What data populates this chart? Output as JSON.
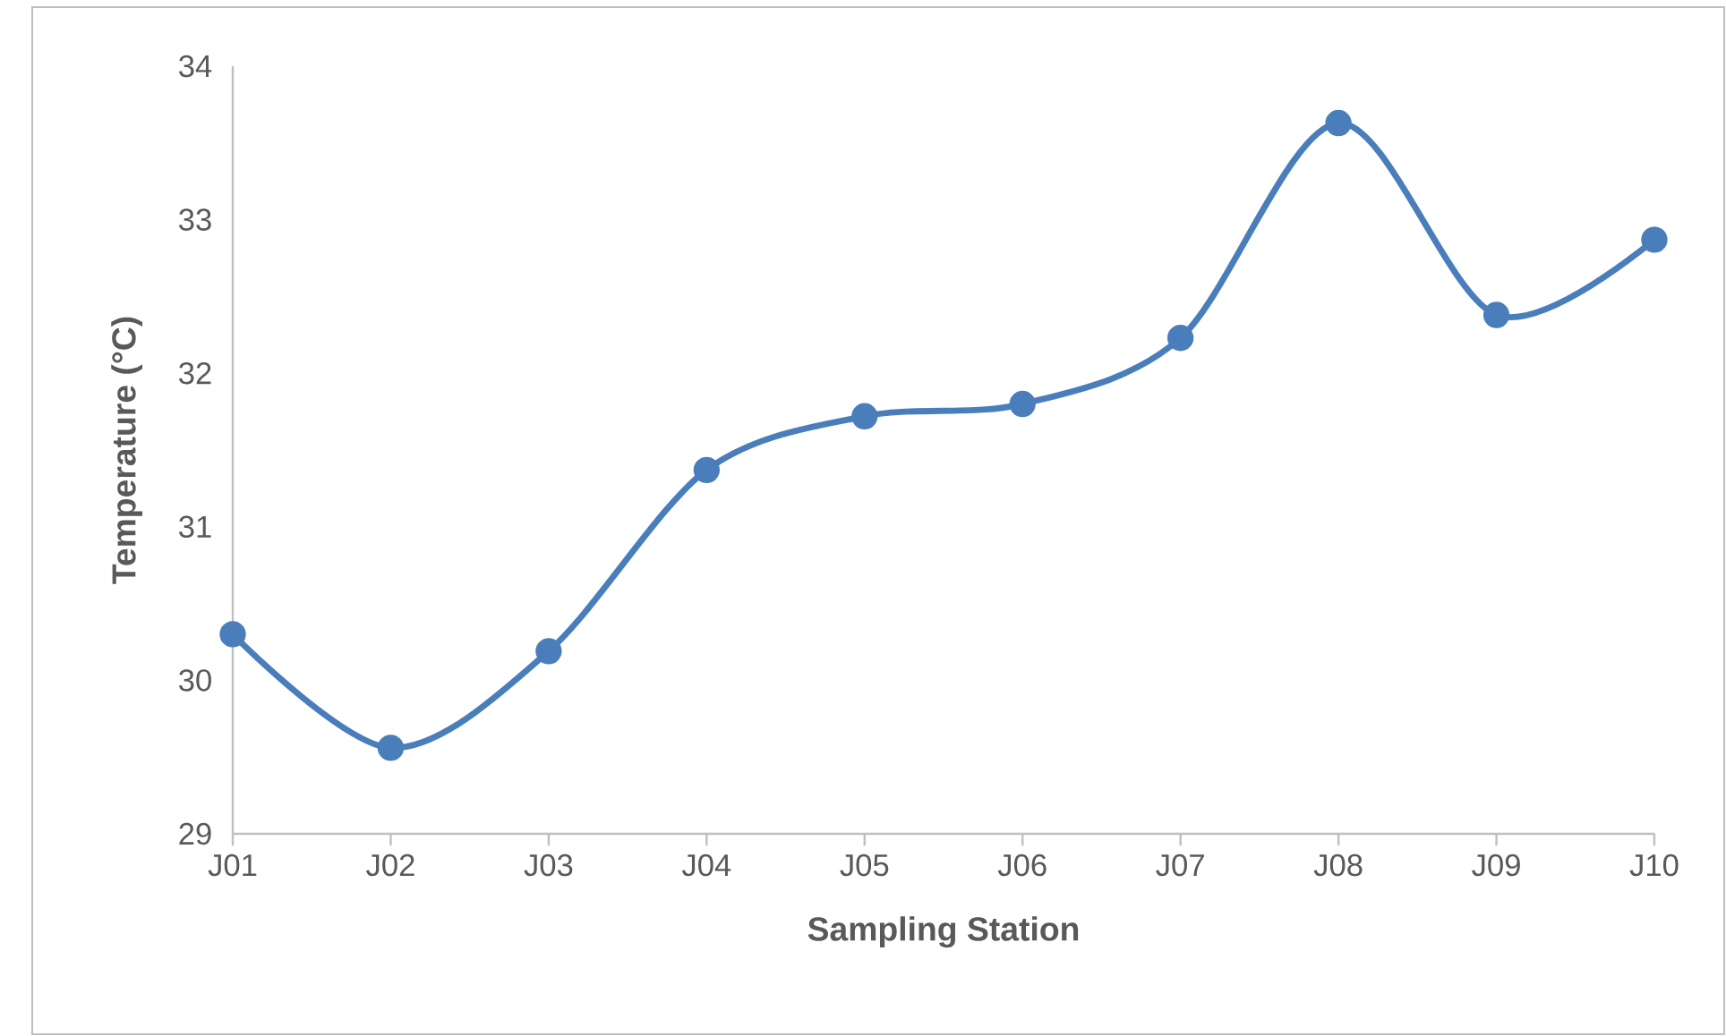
{
  "chart_data": {
    "type": "line",
    "xlabel": "Sampling Station",
    "ylabel": "Temperature (°C)",
    "categories": [
      "J01",
      "J02",
      "J03",
      "J04",
      "J05",
      "J06",
      "J07",
      "J08",
      "J09",
      "J10"
    ],
    "series": [
      {
        "color": "#4a7ebb",
        "values": [
          30.3,
          29.56,
          30.19,
          31.37,
          31.72,
          31.8,
          32.23,
          33.63,
          32.38,
          32.87
        ]
      }
    ],
    "ylim": [
      29,
      34
    ],
    "yticks": [
      29,
      30,
      31,
      32,
      33,
      34
    ],
    "grid": false,
    "marker": "circle",
    "line_style": "solid"
  }
}
